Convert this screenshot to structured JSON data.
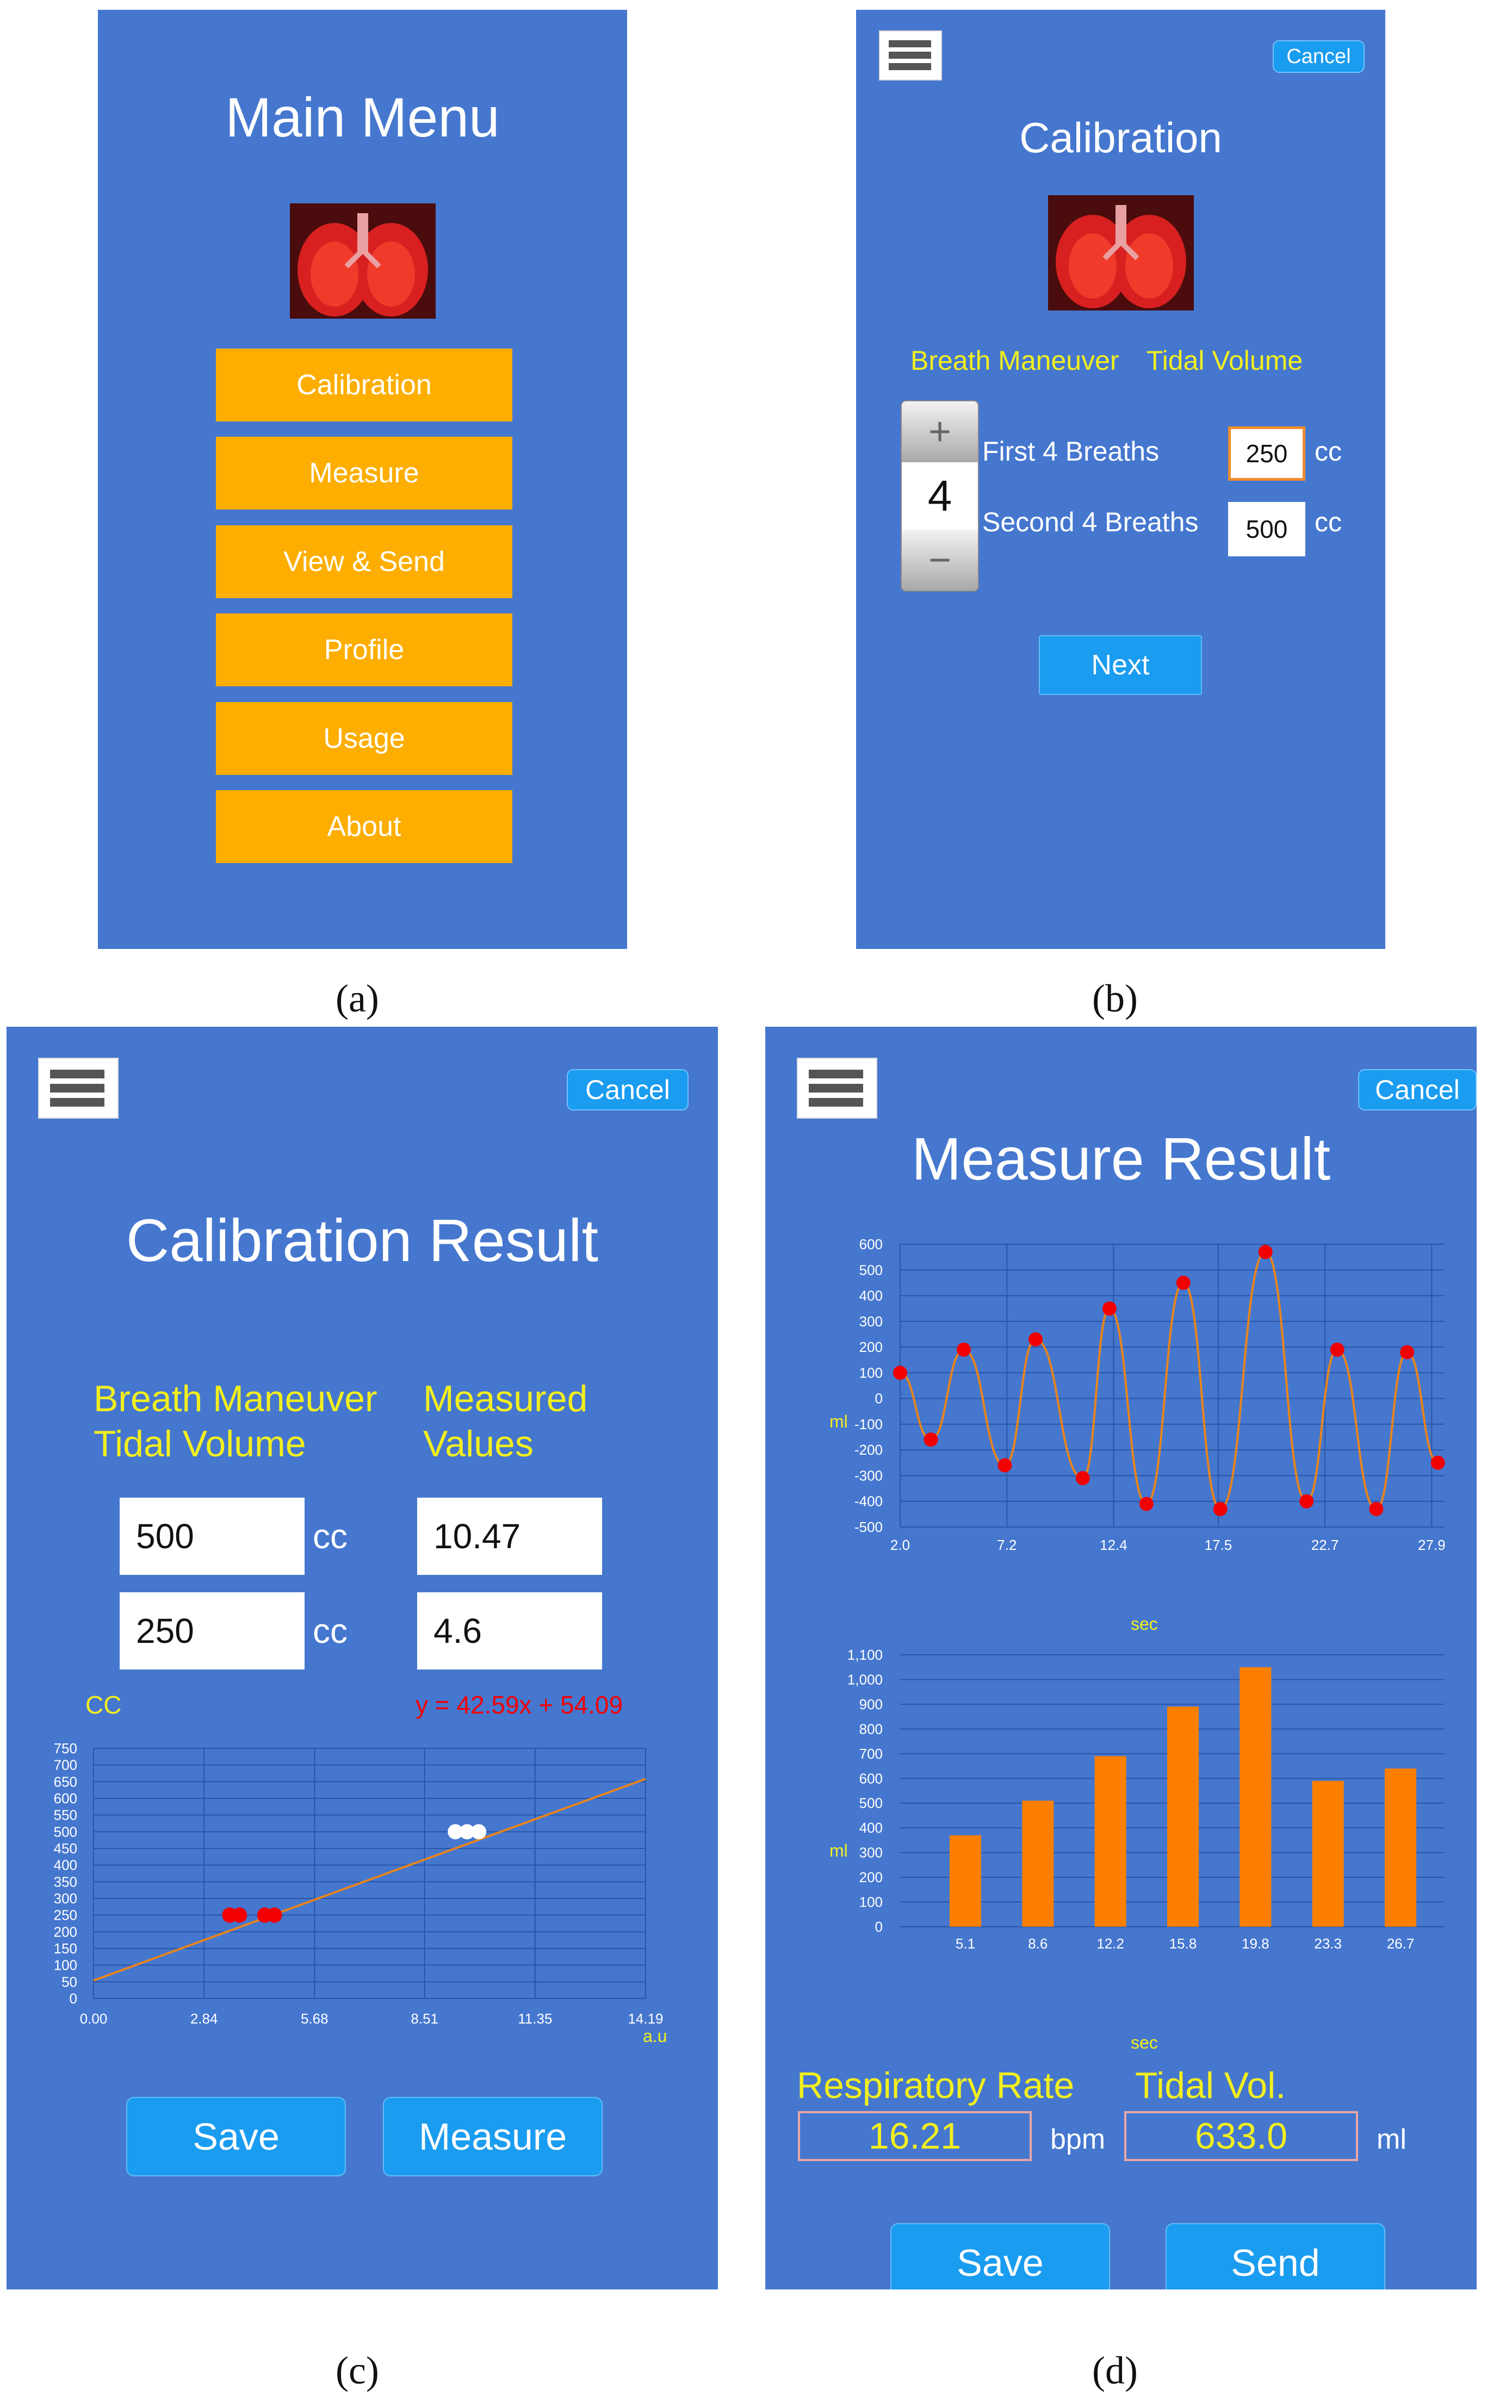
{
  "panel_a": {
    "title": "Main Menu",
    "image_alt": "Lungs image",
    "buttons": [
      "Calibration",
      "Measure",
      "View & Send",
      "Profile",
      "Usage",
      "About"
    ],
    "caption": "(a)"
  },
  "panel_b": {
    "title": "Calibration",
    "cancel": "Cancel",
    "heading_maneuver": "Breath Maneuver",
    "heading_volume": "Tidal Volume",
    "stepper": {
      "plus": "+",
      "value": "4",
      "minus": "−"
    },
    "row1_label": "First 4 Breaths",
    "row1_value": "250",
    "row2_label": "Second 4 Breaths",
    "row2_value": "500",
    "unit": "cc",
    "next": "Next",
    "caption": "(b)"
  },
  "panel_c": {
    "title": "Calibration Result",
    "cancel": "Cancel",
    "col1_heading_1": "Breath Maneuver",
    "col1_heading_2": "Tidal Volume",
    "col2_heading_1": "Measured",
    "col2_heading_2": "Values",
    "row1_volume": "500",
    "row1_measured": "10.47",
    "row2_volume": "250",
    "row2_measured": "4.6",
    "unit": "cc",
    "y_unit": "CC",
    "equation": "y = 42.59x + 54.09",
    "x_unit": "a.u",
    "save": "Save",
    "measure": "Measure",
    "caption": "(c)"
  },
  "panel_d": {
    "title": "Measure Result",
    "cancel": "Cancel",
    "chart1_ylabel": "ml",
    "chart1_xlabel": "sec",
    "chart2_ylabel": "ml",
    "chart2_xlabel": "sec",
    "rr_label": "Respiratory Rate",
    "rr_value": "16.21",
    "rr_unit": "bpm",
    "tv_label": "Tidal Vol.",
    "tv_value": "633.0",
    "tv_unit": "ml",
    "save": "Save",
    "send": "Send",
    "caption": "(d)"
  },
  "colors": {
    "panel_bg": "#4577CF",
    "menu_button": "#FDAE00",
    "accent_blue": "#1A9CF0",
    "heading_yellow": "#F2EF1E",
    "bar_orange": "#FE7F00",
    "point_red": "#F20000"
  },
  "chart_data": [
    {
      "type": "scatter",
      "panel": "c",
      "xlabel": "a.u",
      "ylabel": "CC",
      "xlim": [
        0,
        14.19
      ],
      "ylim": [
        0,
        750
      ],
      "x_ticks": [
        "0.00",
        "2.84",
        "5.68",
        "8.51",
        "11.35",
        "14.19"
      ],
      "y_ticks": [
        "0",
        "50",
        "100",
        "150",
        "200",
        "250",
        "300",
        "350",
        "400",
        "450",
        "500",
        "550",
        "600",
        "650",
        "700",
        "750"
      ],
      "series": [
        {
          "color": "#F20000",
          "points": [
            [
              3.5,
              250
            ],
            [
              3.75,
              250
            ],
            [
              4.4,
              250
            ],
            [
              4.65,
              250
            ]
          ]
        },
        {
          "color": "#FFFFFF",
          "points": [
            [
              9.3,
              500
            ],
            [
              9.6,
              500
            ],
            [
              9.9,
              500
            ]
          ]
        }
      ],
      "fit_line": {
        "slope": 42.59,
        "intercept": 54.09,
        "color": "#E8841C"
      },
      "grid": true
    },
    {
      "type": "line",
      "panel": "d",
      "xlabel": "sec",
      "ylabel": "ml",
      "xlim": [
        2.0,
        28.5
      ],
      "ylim": [
        -500,
        600
      ],
      "x_ticks": [
        "2.0",
        "7.2",
        "12.4",
        "17.5",
        "22.7",
        "27.9"
      ],
      "y_ticks": [
        "600",
        "500",
        "400",
        "300",
        "200",
        "100",
        "0",
        "-100",
        "-200",
        "-300",
        "-400",
        "-500"
      ],
      "peaks": [
        [
          2.0,
          100
        ],
        [
          5.1,
          190
        ],
        [
          8.6,
          230
        ],
        [
          12.2,
          350
        ],
        [
          15.8,
          450
        ],
        [
          19.8,
          570
        ],
        [
          23.3,
          190
        ],
        [
          26.7,
          180
        ]
      ],
      "troughs": [
        [
          3.5,
          -160
        ],
        [
          7.1,
          -260
        ],
        [
          10.9,
          -310
        ],
        [
          14.0,
          -410
        ],
        [
          17.6,
          -430
        ],
        [
          21.8,
          -400
        ],
        [
          25.2,
          -430
        ],
        [
          28.2,
          -250
        ]
      ],
      "line_color": "#E8841C",
      "point_color": "#F20000",
      "grid": true
    },
    {
      "type": "bar",
      "panel": "d",
      "xlabel": "sec",
      "ylabel": "ml",
      "categories": [
        "5.1",
        "8.6",
        "12.2",
        "15.8",
        "19.8",
        "23.3",
        "26.7"
      ],
      "values": [
        370,
        510,
        690,
        890,
        1050,
        590,
        640
      ],
      "ylim": [
        0,
        1100
      ],
      "y_ticks": [
        "1,100",
        "1,000",
        "900",
        "800",
        "700",
        "600",
        "500",
        "400",
        "300",
        "200",
        "100",
        "0"
      ],
      "bar_color": "#FE7F00",
      "grid": true
    }
  ]
}
